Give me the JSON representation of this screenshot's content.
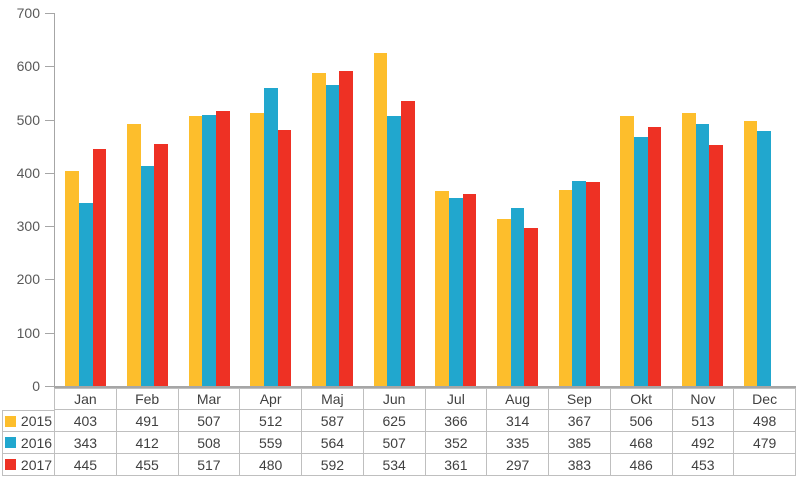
{
  "chart_data": {
    "type": "bar",
    "title": "",
    "xlabel": "",
    "ylabel": "",
    "categories": [
      "Jan",
      "Feb",
      "Mar",
      "Apr",
      "Maj",
      "Jun",
      "Jul",
      "Aug",
      "Sep",
      "Okt",
      "Nov",
      "Dec"
    ],
    "series": [
      {
        "name": "2015",
        "color": "#FDBE2C",
        "values": [
          403,
          491,
          507,
          512,
          587,
          625,
          366,
          314,
          367,
          506,
          513,
          498
        ]
      },
      {
        "name": "2016",
        "color": "#21A7CE",
        "values": [
          343,
          412,
          508,
          559,
          564,
          507,
          352,
          335,
          385,
          468,
          492,
          479
        ]
      },
      {
        "name": "2017",
        "color": "#EE3124",
        "values": [
          445,
          455,
          517,
          480,
          592,
          534,
          361,
          297,
          383,
          486,
          453,
          null
        ]
      }
    ],
    "ylim": [
      0,
      700
    ],
    "yticks": [
      0,
      100,
      200,
      300,
      400,
      500,
      600,
      700
    ],
    "grid": false,
    "legend_position": "data-table-left",
    "colors": {
      "axis": "#A6A6A6",
      "tick_label": "#595959",
      "table_text": "#404040",
      "table_border": "#BFBFBF",
      "background": "#FFFFFF"
    }
  }
}
